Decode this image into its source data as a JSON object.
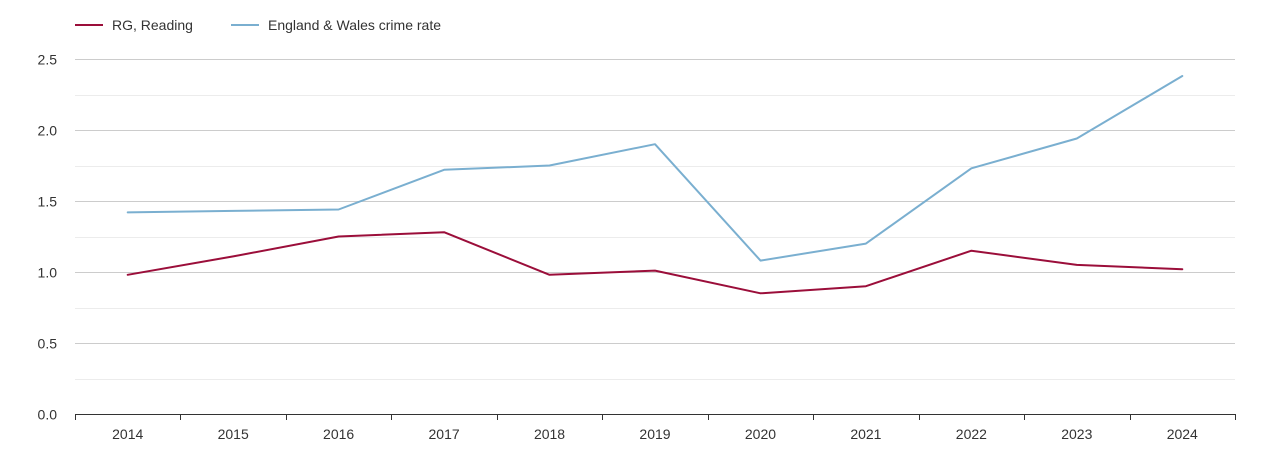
{
  "chart_data": {
    "type": "line",
    "title": "",
    "xlabel": "",
    "ylabel": "",
    "categories": [
      "2014",
      "2015",
      "2016",
      "2017",
      "2018",
      "2019",
      "2020",
      "2021",
      "2022",
      "2023",
      "2024"
    ],
    "ylim": [
      0,
      2.5
    ],
    "y_ticks": [
      "0.0",
      "0.5",
      "1.0",
      "1.5",
      "2.0",
      "2.5"
    ],
    "grid": true,
    "legend_position": "top-left",
    "series": [
      {
        "name": "RG, Reading",
        "color": "#9b0e3a",
        "values": [
          0.98,
          1.11,
          1.25,
          1.28,
          0.98,
          1.01,
          0.85,
          0.9,
          1.15,
          1.05,
          1.02
        ]
      },
      {
        "name": "England & Wales crime rate",
        "color": "#7aafd0",
        "values": [
          1.42,
          1.43,
          1.44,
          1.72,
          1.75,
          1.9,
          1.08,
          1.2,
          1.73,
          1.94,
          2.38
        ]
      }
    ]
  }
}
